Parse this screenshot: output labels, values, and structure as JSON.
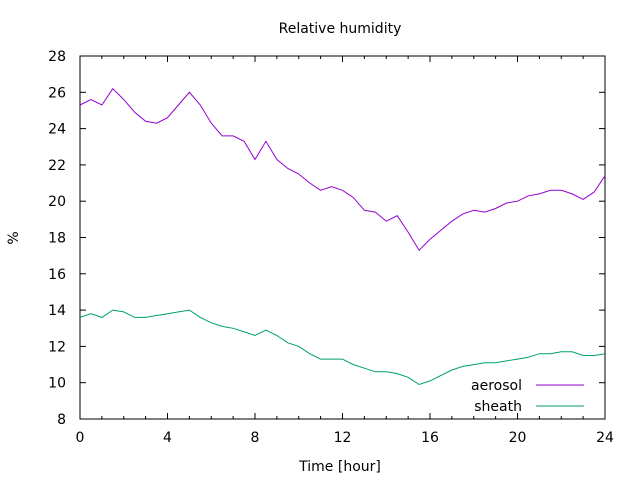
{
  "chart_data": {
    "type": "line",
    "title": "Relative humidity",
    "xlabel": "Time [hour]",
    "ylabel": "%",
    "xlim": [
      0,
      24
    ],
    "ylim": [
      8,
      28
    ],
    "xticks": [
      "0",
      "4",
      "8",
      "12",
      "16",
      "20",
      "24"
    ],
    "yticks": [
      "8",
      "10",
      "12",
      "14",
      "16",
      "18",
      "20",
      "22",
      "24",
      "26",
      "28"
    ],
    "grid": false,
    "legend_position": "bottom-right",
    "series": [
      {
        "name": "aerosol",
        "color": "#9400d3",
        "x": [
          0,
          0.5,
          1,
          1.5,
          2,
          2.5,
          3,
          3.5,
          4,
          4.5,
          5,
          5.5,
          6,
          6.5,
          7,
          7.5,
          8,
          8.5,
          9,
          9.5,
          10,
          10.5,
          11,
          11.5,
          12,
          12.5,
          13,
          13.5,
          14,
          14.5,
          15,
          15.5,
          16,
          16.5,
          17,
          17.5,
          18,
          18.5,
          19,
          19.5,
          20,
          20.5,
          21,
          21.5,
          22,
          22.5,
          23,
          23.5,
          24
        ],
        "y": [
          25.3,
          25.6,
          25.3,
          26.2,
          25.6,
          24.9,
          24.4,
          24.3,
          24.6,
          25.3,
          26.0,
          25.3,
          24.3,
          23.6,
          23.6,
          23.3,
          22.3,
          23.3,
          22.3,
          21.8,
          21.5,
          21.0,
          20.6,
          20.8,
          20.6,
          20.2,
          19.5,
          19.4,
          18.9,
          19.2,
          18.3,
          17.3,
          17.9,
          18.4,
          18.9,
          19.3,
          19.5,
          19.4,
          19.6,
          19.9,
          20.0,
          20.3,
          20.4,
          20.6,
          20.6,
          20.4,
          20.1,
          20.5,
          21.4
        ]
      },
      {
        "name": "sheath",
        "color": "#009e73",
        "x": [
          0,
          0.5,
          1,
          1.5,
          2,
          2.5,
          3,
          3.5,
          4,
          4.5,
          5,
          5.5,
          6,
          6.5,
          7,
          7.5,
          8,
          8.5,
          9,
          9.5,
          10,
          10.5,
          11,
          11.5,
          12,
          12.5,
          13,
          13.5,
          14,
          14.5,
          15,
          15.5,
          16,
          16.5,
          17,
          17.5,
          18,
          18.5,
          19,
          19.5,
          20,
          20.5,
          21,
          21.5,
          22,
          22.5,
          23,
          23.5,
          24
        ],
        "y": [
          13.6,
          13.8,
          13.6,
          14.0,
          13.9,
          13.6,
          13.6,
          13.7,
          13.8,
          13.9,
          14.0,
          13.6,
          13.3,
          13.1,
          13.0,
          12.8,
          12.6,
          12.9,
          12.6,
          12.2,
          12.0,
          11.6,
          11.3,
          11.3,
          11.3,
          11.0,
          10.8,
          10.6,
          10.6,
          10.5,
          10.3,
          9.9,
          10.1,
          10.4,
          10.7,
          10.9,
          11.0,
          11.1,
          11.1,
          11.2,
          11.3,
          11.4,
          11.6,
          11.6,
          11.7,
          11.7,
          11.5,
          11.5,
          11.6
        ]
      }
    ]
  }
}
